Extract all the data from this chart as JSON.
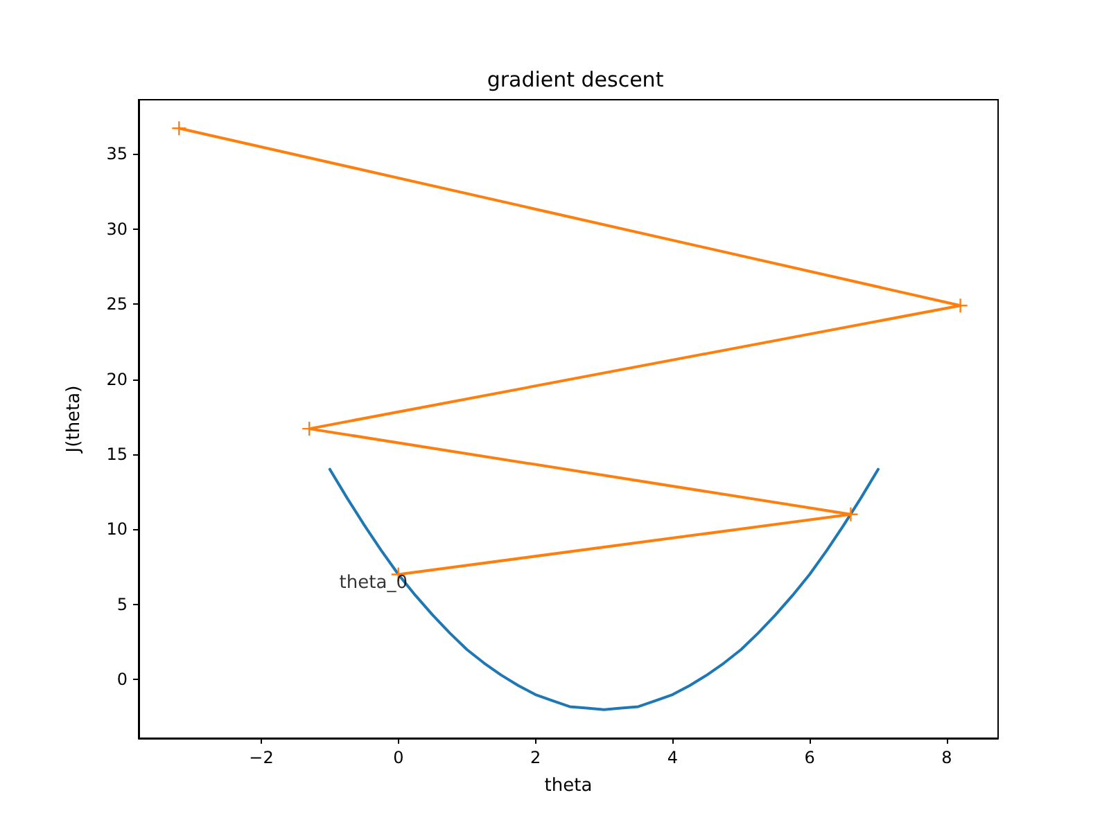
{
  "chart_data": {
    "type": "line",
    "title": "gradient descent",
    "xlabel": "theta",
    "ylabel": "J(theta)",
    "series": [
      {
        "color": "#1f77b4",
        "marker": "none",
        "x": [
          -1,
          -0.75,
          -0.5,
          -0.25,
          0,
          0.25,
          0.5,
          0.75,
          1,
          1.25,
          1.5,
          1.75,
          2,
          2.25,
          2.5,
          2.75,
          3,
          3.25,
          3.5,
          3.75,
          4,
          4.25,
          4.5,
          4.75,
          5,
          5.25,
          5.5,
          5.75,
          6,
          6.25,
          6.5,
          6.75,
          7
        ],
        "values": [
          14,
          12.1,
          10.3,
          8.6,
          7,
          5.6,
          4.3,
          3.1,
          2,
          1.1,
          0.3,
          -0.4,
          -1,
          -1.4,
          -1.8,
          -1.9,
          -2,
          -1.9,
          -1.8,
          -1.4,
          -1,
          -0.4,
          0.3,
          1.1,
          2,
          3.1,
          4.3,
          5.6,
          7,
          8.6,
          10.3,
          12.1,
          14
        ]
      },
      {
        "color": "#ff7f0e",
        "marker": "cross",
        "x": [
          0,
          6.6,
          -1.3,
          8.2,
          -3.2
        ],
        "values": [
          7,
          11,
          16.7,
          24.9,
          36.7
        ]
      }
    ],
    "annotations": [
      {
        "text": "theta_0",
        "x": 0,
        "y": 7
      }
    ],
    "xlim": [
      -3.79,
      8.75
    ],
    "xticks": [
      {
        "value": -2,
        "label": "−2"
      },
      0,
      2,
      4,
      6,
      8
    ],
    "ylim": [
      -3.9,
      38.6
    ],
    "yticks": [
      0,
      5,
      10,
      15,
      20,
      25,
      30,
      35
    ],
    "grid": false
  }
}
